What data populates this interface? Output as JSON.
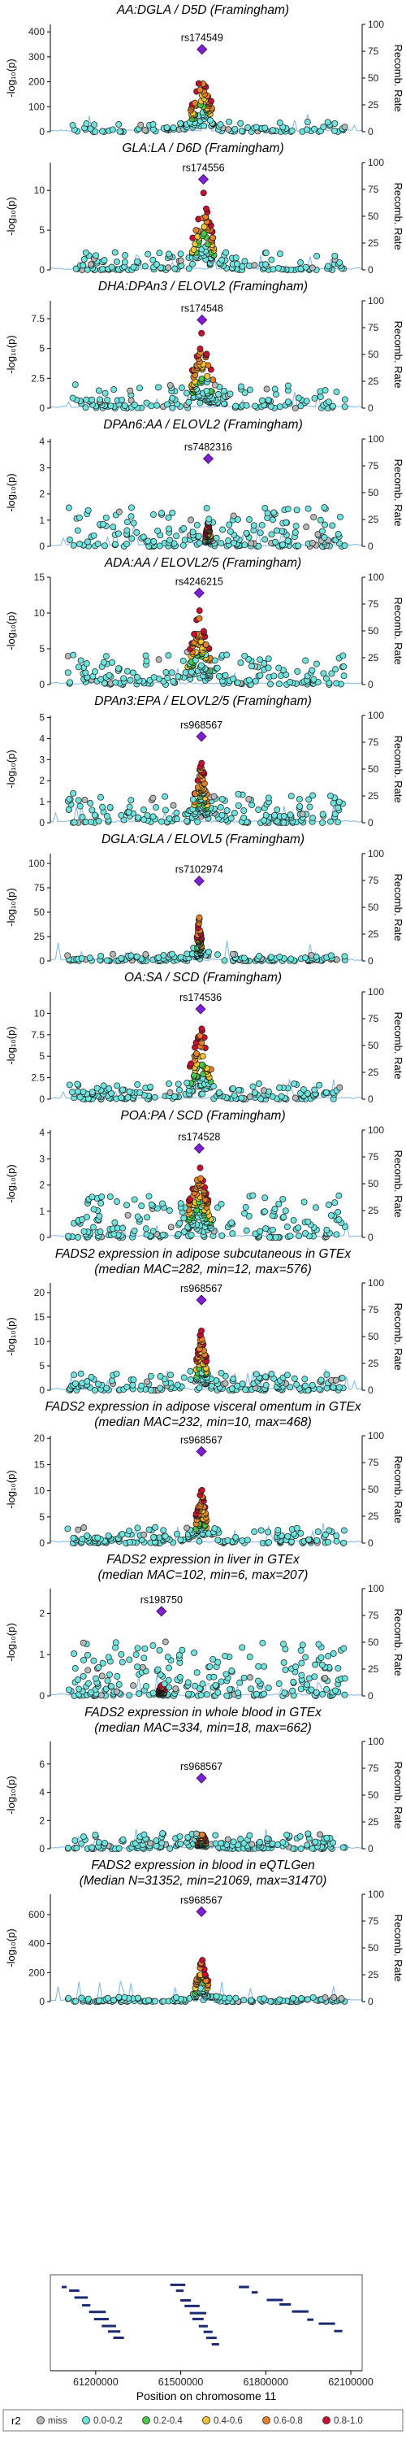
{
  "colors": {
    "miss": "#b8b8b8",
    "r2_00_02": "#6fe3de",
    "r2_02_04": "#4cc84c",
    "r2_04_06": "#f3c433",
    "r2_06_08": "#e6812a",
    "r2_08_10": "#c8102e",
    "lead": "#7e1fd0",
    "recomb": "#7fb6e8"
  },
  "x_axis": {
    "label": "Position on chromosome 11",
    "ticks": [
      61200000,
      61500000,
      61800000,
      62100000
    ],
    "tick_labels": [
      "61200000",
      "61500000",
      "61800000",
      "62100000"
    ],
    "range": [
      61040000,
      62140000
    ]
  },
  "legend": {
    "title": "r2",
    "items": [
      {
        "label": "miss",
        "color_key": "miss"
      },
      {
        "label": "0.0-0.2",
        "color_key": "r2_00_02"
      },
      {
        "label": "0.2-0.4",
        "color_key": "r2_02_04"
      },
      {
        "label": "0.4-0.6",
        "color_key": "r2_04_06"
      },
      {
        "label": "0.6-0.8",
        "color_key": "r2_06_08"
      },
      {
        "label": "0.8-1.0",
        "color_key": "r2_08_10"
      }
    ]
  },
  "chart_data": [
    {
      "type": "scatter",
      "title": "AA:DGLA / D5D (Framingham)",
      "subtitle": "",
      "lead_label": "rs174549",
      "lead_x": 61575000,
      "lead_y": 330,
      "ylim": [
        0,
        430
      ],
      "yticks": [
        0,
        100,
        200,
        300,
        400
      ],
      "ylabel": "-log₁₀(p)",
      "y2label": "Recomb. Rate",
      "y2ticks": [
        0,
        25,
        50,
        75,
        100
      ],
      "peak": 250,
      "noise": 40,
      "spread": 45,
      "ld_spread": 40,
      "count": 170,
      "seed": 1
    },
    {
      "type": "scatter",
      "title": "GLA:LA / D6D (Framingham)",
      "subtitle": "",
      "lead_label": "rs174556",
      "lead_x": 61580000,
      "lead_y": 11.4,
      "ylim": [
        0,
        13.5
      ],
      "yticks": [
        0,
        5,
        10
      ],
      "ylabel": "-log₁₀(p)",
      "y2label": "Recomb. Rate",
      "y2ticks": [
        0,
        25,
        50,
        75,
        100
      ],
      "peak": 10,
      "noise": 2.2,
      "spread": 45,
      "ld_spread": 40,
      "count": 200,
      "seed": 2
    },
    {
      "type": "scatter",
      "title": "DHA:DPAn3 / ELOVL2 (Framingham)",
      "subtitle": "",
      "lead_label": "rs174548",
      "lead_x": 61575000,
      "lead_y": 7.4,
      "ylim": [
        0,
        9
      ],
      "yticks": [
        0,
        2.5,
        5,
        7.5
      ],
      "ylabel": "-log₁₀(p)",
      "y2label": "Recomb. Rate",
      "y2ticks": [
        0,
        25,
        50,
        75,
        100
      ],
      "peak": 6.5,
      "noise": 2.0,
      "spread": 50,
      "ld_spread": 40,
      "count": 210,
      "seed": 3
    },
    {
      "type": "scatter",
      "title": "DPAn6:AA / ELOVL2 (Framingham)",
      "subtitle": "",
      "lead_label": "rs7482316",
      "lead_x": 61597000,
      "lead_y": 3.35,
      "ylim": [
        0,
        4.1
      ],
      "yticks": [
        0,
        1,
        2,
        3,
        4
      ],
      "ylabel": "-log₁₀(p)",
      "y2label": "Recomb. Rate",
      "y2ticks": [
        0,
        25,
        50,
        75,
        100
      ],
      "peak": 1.0,
      "noise": 1.5,
      "spread": 60,
      "ld_spread": 10,
      "count": 260,
      "seed": 4
    },
    {
      "type": "scatter",
      "title": "ADA:AA / ELOVL2/5 (Framingham)",
      "subtitle": "",
      "lead_label": "rs4246215",
      "lead_x": 61565000,
      "lead_y": 12.8,
      "ylim": [
        0,
        15
      ],
      "yticks": [
        0,
        5,
        10,
        15
      ],
      "ylabel": "-log₁₀(p)",
      "y2label": "Recomb. Rate",
      "y2ticks": [
        0,
        25,
        50,
        75,
        100
      ],
      "peak": 11,
      "noise": 4.5,
      "spread": 55,
      "ld_spread": 40,
      "count": 240,
      "seed": 5
    },
    {
      "type": "scatter",
      "title": "DPAn3:EPA / ELOVL2/5 (Framingham)",
      "subtitle": "",
      "lead_label": "rs968567",
      "lead_x": 61573000,
      "lead_y": 4.1,
      "ylim": [
        0,
        5.1
      ],
      "yticks": [
        0,
        1,
        2,
        3,
        4,
        5
      ],
      "ylabel": "-log₁₀(p)",
      "y2label": "Recomb. Rate",
      "y2ticks": [
        0,
        25,
        50,
        75,
        100
      ],
      "peak": 3.2,
      "noise": 1.4,
      "spread": 55,
      "ld_spread": 25,
      "count": 250,
      "seed": 6
    },
    {
      "type": "scatter",
      "title": "DGLA:GLA / ELOVL5 (Framingham)",
      "subtitle": "",
      "lead_label": "rs7102974",
      "lead_x": 61565000,
      "lead_y": 82,
      "ylim": [
        0,
        110
      ],
      "yticks": [
        0,
        25,
        50,
        75,
        100
      ],
      "ylabel": "-log₁₀(p)",
      "y2label": "Recomb. Rate",
      "y2ticks": [
        0,
        25,
        50,
        75,
        100
      ],
      "peak": 55,
      "noise": 7,
      "spread": 30,
      "ld_spread": 8,
      "count": 220,
      "seed": 7
    },
    {
      "type": "scatter",
      "title": "OA:SA / SCD (Framingham)",
      "subtitle": "",
      "lead_label": "rs174536",
      "lead_x": 61570000,
      "lead_y": 10.5,
      "ylim": [
        0,
        12.5
      ],
      "yticks": [
        0,
        2.5,
        5,
        7.5,
        10
      ],
      "ylabel": "-log₁₀(p)",
      "y2label": "Recomb. Rate",
      "y2ticks": [
        0,
        25,
        50,
        75,
        100
      ],
      "peak": 9.5,
      "noise": 1.8,
      "spread": 45,
      "ld_spread": 40,
      "count": 220,
      "seed": 8
    },
    {
      "type": "scatter",
      "title": "POA:PA / SCD (Framingham)",
      "subtitle": "",
      "lead_label": "rs174528",
      "lead_x": 61565000,
      "lead_y": 3.4,
      "ylim": [
        0,
        4.1
      ],
      "yticks": [
        0,
        1,
        2,
        3,
        4
      ],
      "ylabel": "-log₁₀(p)",
      "y2label": "Recomb. Rate",
      "y2ticks": [
        0,
        25,
        50,
        75,
        100
      ],
      "peak": 3.0,
      "noise": 1.6,
      "spread": 55,
      "ld_spread": 40,
      "count": 280,
      "seed": 9
    },
    {
      "type": "scatter",
      "title": "FADS2 expression in adipose subcutaneous in GTEx",
      "subtitle": "(median MAC=282, min=12, max=576)",
      "lead_label": "rs968567",
      "lead_x": 61573000,
      "lead_y": 18.5,
      "ylim": [
        0,
        22
      ],
      "yticks": [
        0,
        5,
        10,
        15,
        20
      ],
      "ylabel": "-log₁₀(p)",
      "y2label": "Recomb. Rate",
      "y2ticks": [
        0,
        25,
        50,
        75,
        100
      ],
      "peak": 14,
      "noise": 3.5,
      "spread": 35,
      "ld_spread": 20,
      "count": 230,
      "seed": 10
    },
    {
      "type": "scatter",
      "title": "FADS2 expression in adipose visceral omentum in GTEx",
      "subtitle": "(median MAC=232, min=10, max=468)",
      "lead_label": "rs968567",
      "lead_x": 61573000,
      "lead_y": 17.5,
      "ylim": [
        0,
        20.5
      ],
      "yticks": [
        0,
        5,
        10,
        15,
        20
      ],
      "ylabel": "-log₁₀(p)",
      "y2label": "Recomb. Rate",
      "y2ticks": [
        0,
        25,
        50,
        75,
        100
      ],
      "peak": 12,
      "noise": 3.0,
      "spread": 35,
      "ld_spread": 20,
      "count": 230,
      "seed": 11
    },
    {
      "type": "scatter",
      "title": "FADS2 expression in liver in GTEx",
      "subtitle": "(median MAC=102, min=6, max=207)",
      "lead_label": "rs198750",
      "lead_x": 61432000,
      "lead_y": 2.05,
      "ylim": [
        0,
        2.6
      ],
      "yticks": [
        0,
        1,
        2
      ],
      "ylabel": "-log₁₀(p)",
      "y2label": "Recomb. Rate",
      "y2ticks": [
        0,
        25,
        50,
        75,
        100
      ],
      "peak": 0.3,
      "noise": 1.3,
      "spread": 60,
      "ld_spread": 10,
      "count": 300,
      "seed": 12
    },
    {
      "type": "scatter",
      "title": "FADS2 expression in whole blood in GTEx",
      "subtitle": "(median MAC=334, min=18, max=662)",
      "lead_label": "rs968567",
      "lead_x": 61573000,
      "lead_y": 5.0,
      "ylim": [
        0,
        7.6
      ],
      "yticks": [
        0,
        2,
        4,
        6
      ],
      "ylabel": "-log₁₀(p)",
      "y2label": "Recomb. Rate",
      "y2ticks": [
        0,
        25,
        50,
        75,
        100
      ],
      "peak": 1.5,
      "noise": 1.1,
      "spread": 45,
      "ld_spread": 15,
      "count": 240,
      "seed": 13
    },
    {
      "type": "scatter",
      "title": "FADS2 expression in blood in eQTLGen",
      "subtitle": "(Median N=31352, min=21069, max=31470)",
      "lead_label": "rs968567",
      "lead_x": 61573000,
      "lead_y": 620,
      "ylim": [
        0,
        740
      ],
      "yticks": [
        0,
        200,
        400,
        600
      ],
      "ylabel": "-log₁₀(p)",
      "y2label": "Recomb. Rate",
      "y2ticks": [
        0,
        25,
        50,
        75,
        100
      ],
      "peak": 320,
      "noise": 30,
      "spread": 30,
      "ld_spread": 25,
      "count": 210,
      "seed": 14
    }
  ]
}
